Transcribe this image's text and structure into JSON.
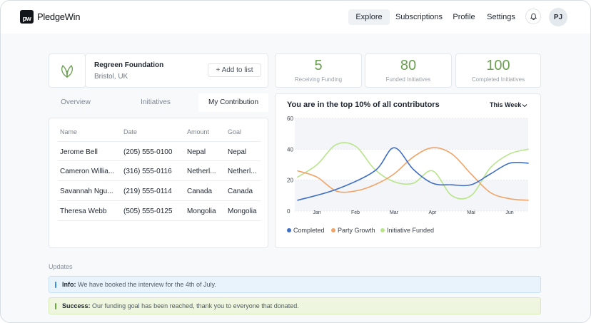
{
  "brand": {
    "logo_text": "PledgeWin",
    "logo_mark": "pw"
  },
  "nav": {
    "items": [
      {
        "label": "Explore",
        "active": true
      },
      {
        "label": "Subscriptions"
      },
      {
        "label": "Profile"
      },
      {
        "label": "Settings"
      }
    ],
    "notification_icon": "bell-icon",
    "avatar_initials": "PJ"
  },
  "organization": {
    "name": "Regreen Foundation",
    "location": "Bristol, UK",
    "logo_icon": "leaf-icon",
    "add_button": "+ Add to list"
  },
  "stats": [
    {
      "value": "5",
      "label": "Receiving Funding"
    },
    {
      "value": "80",
      "label": "Funded Initiatives"
    },
    {
      "value": "100",
      "label": "Completed Initiatives"
    }
  ],
  "tabs": [
    {
      "label": "Overview"
    },
    {
      "label": "Initiatives"
    },
    {
      "label": "My Contribution",
      "active": true
    }
  ],
  "table": {
    "columns": [
      "Name",
      "Date",
      "Amount",
      "Goal"
    ],
    "rows": [
      [
        "Jerome Bell",
        "(205) 555-0100",
        "Nepal",
        "Nepal"
      ],
      [
        "Cameron Willia...",
        "(316) 555-0116",
        "Netherl...",
        "Netherl..."
      ],
      [
        "Savannah Ngu...",
        "(219) 555-0114",
        "Canada",
        "Canada"
      ],
      [
        "Theresa Webb",
        "(505) 555-0125",
        "Mongolia",
        "Mongolia"
      ]
    ]
  },
  "chart_card": {
    "period_label": "This Week",
    "colors": {
      "completed": "#3f6fc4",
      "party_growth": "#f0a467",
      "initiative_funded": "#b8e58a"
    }
  },
  "chart_data": {
    "type": "line",
    "title": "You are in the top 10% of all contributors",
    "categories": [
      "Jan",
      "Feb",
      "Mar",
      "Apr",
      "Mai",
      "Jun"
    ],
    "ylim": [
      0,
      60
    ],
    "yticks": [
      0,
      20,
      40,
      60
    ],
    "grid": true,
    "legend_position": "bottom-left",
    "series": [
      {
        "name": "Completed",
        "points": [
          [
            -0.5,
            7
          ],
          [
            0.5,
            14
          ],
          [
            1.5,
            26
          ],
          [
            2,
            41
          ],
          [
            2.5,
            27
          ],
          [
            3,
            18
          ],
          [
            3.5,
            17
          ],
          [
            4,
            17
          ],
          [
            4.5,
            24
          ],
          [
            5,
            31
          ],
          [
            5.5,
            31
          ]
        ]
      },
      {
        "name": "Party Growth",
        "points": [
          [
            -0.5,
            26
          ],
          [
            0,
            22
          ],
          [
            0.5,
            13
          ],
          [
            1,
            13
          ],
          [
            1.5,
            17
          ],
          [
            2,
            24
          ],
          [
            2.5,
            35
          ],
          [
            3,
            41
          ],
          [
            3.5,
            37
          ],
          [
            4,
            24
          ],
          [
            4.5,
            12
          ],
          [
            5,
            8
          ],
          [
            5.5,
            7
          ]
        ]
      },
      {
        "name": "Initiative Funded",
        "points": [
          [
            -0.5,
            22
          ],
          [
            0,
            30
          ],
          [
            0.5,
            43
          ],
          [
            1,
            42
          ],
          [
            1.5,
            27
          ],
          [
            2,
            19
          ],
          [
            2.5,
            18
          ],
          [
            3,
            26
          ],
          [
            3.5,
            10
          ],
          [
            4,
            10
          ],
          [
            4.5,
            28
          ],
          [
            5,
            37
          ],
          [
            5.5,
            40
          ]
        ]
      }
    ]
  },
  "updates": {
    "label": "Updates",
    "alerts": [
      {
        "type": "info",
        "title": "Info:",
        "text": "We have booked the interview for the 4th of July."
      },
      {
        "type": "success",
        "title": "Success:",
        "text": "Our funding goal has been reached, thank you to everyone that donated."
      }
    ]
  }
}
